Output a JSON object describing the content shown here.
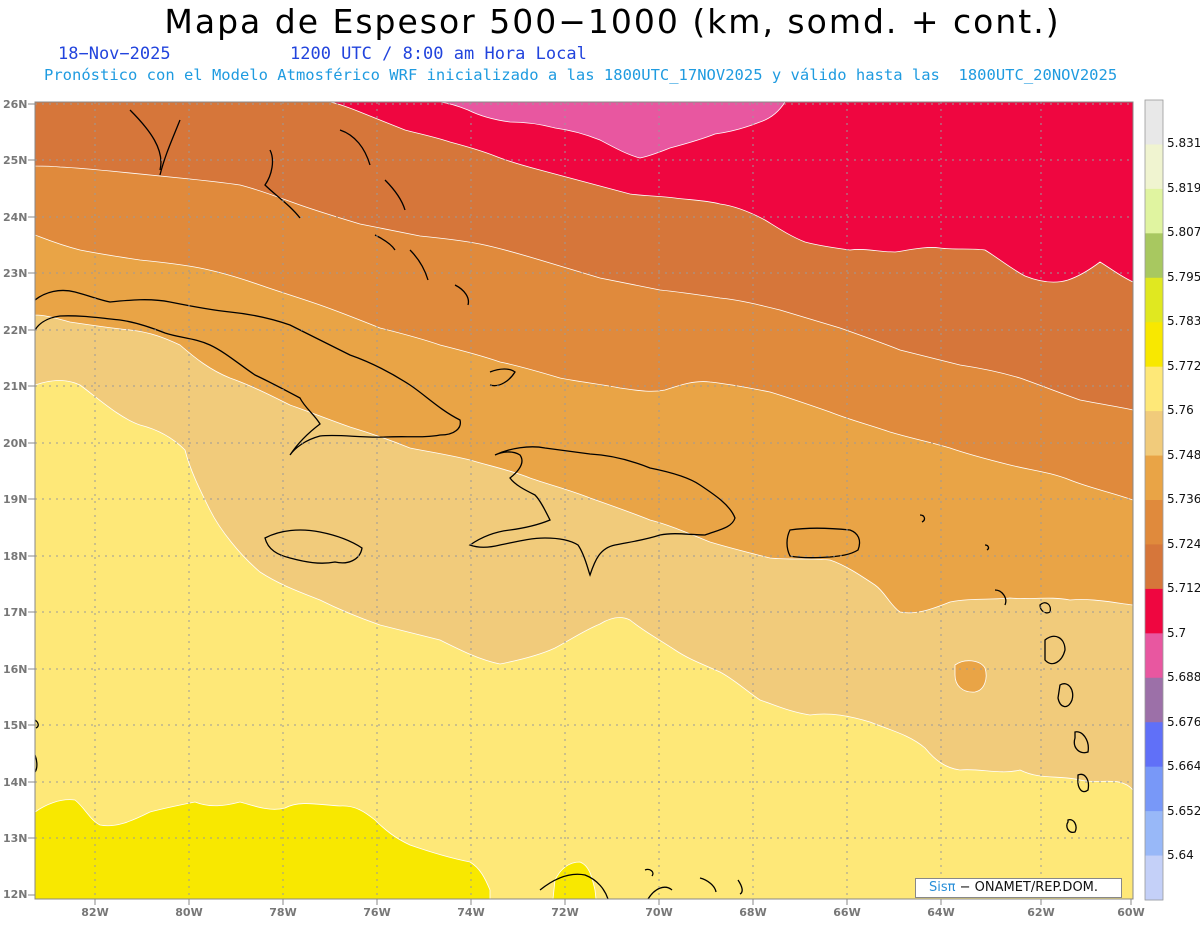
{
  "header": {
    "title": "Mapa de Espesor 500−1000 (km, somd. + cont.)",
    "date": "18−Nov−2025",
    "valid_time": "1200 UTC / 8:00 am Hora Local",
    "subtitle": "Pronóstico con el Modelo Atmosférico WRF inicializado a las 1800UTC_17NOV2025 y válido hasta las  1800UTC_20NOV2025"
  },
  "map": {
    "lat_labels": [
      "26N",
      "25N",
      "24N",
      "23N",
      "22N",
      "21N",
      "20N",
      "19N",
      "18N",
      "17N",
      "16N",
      "15N",
      "14N",
      "13N",
      "12N"
    ],
    "lon_labels": [
      "82W",
      "80W",
      "78W",
      "76W",
      "74W",
      "72W",
      "70W",
      "68W",
      "66W",
      "64W",
      "62W",
      "60W"
    ],
    "lat_range": [
      12,
      26
    ],
    "lon_range": [
      -83.3,
      -60
    ],
    "grid": true
  },
  "colorbar": {
    "labels": [
      "5.831",
      "5.819",
      "5.807",
      "5.795",
      "5.783",
      "5.772",
      "5.76",
      "5.748",
      "5.736",
      "5.724",
      "5.712",
      "5.7",
      "5.688",
      "5.676",
      "5.664",
      "5.652",
      "5.64"
    ],
    "colors": [
      "#e8e8e8",
      "#f0f4d0",
      "#e0f4a0",
      "#a8c860",
      "#e0e820",
      "#f8e800",
      "#fee878",
      "#f1cb7b",
      "#e9a446",
      "#e08a3c",
      "#d6763a",
      "#ef0640",
      "#e857a0",
      "#9c70a8",
      "#6070f8",
      "#7898f8",
      "#98b8f8",
      "#c4d0f8"
    ]
  },
  "credit": {
    "brand": "Sisπ",
    "org": "− ONAMET/REP.DOM."
  }
}
